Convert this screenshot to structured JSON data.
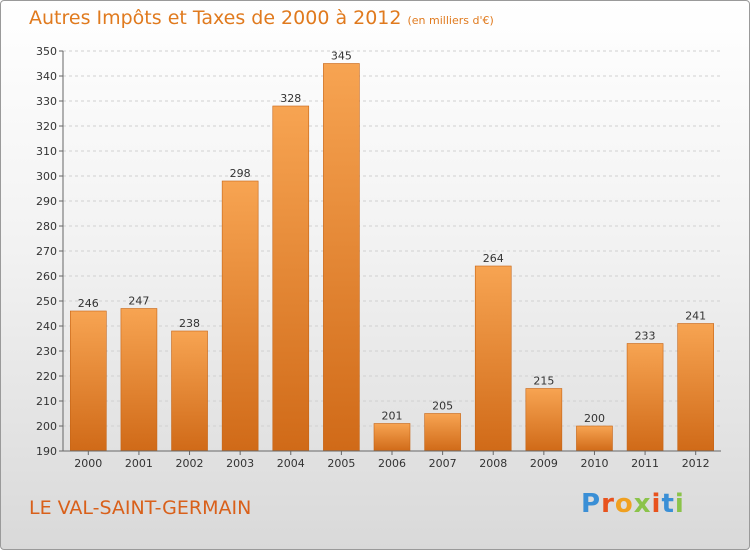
{
  "chart_data": {
    "type": "bar",
    "title": "Autres Impôts et Taxes de 2000 à 2012",
    "subtitle": "(en milliers d'€)",
    "categories": [
      "2000",
      "2001",
      "2002",
      "2003",
      "2004",
      "2005",
      "2006",
      "2007",
      "2008",
      "2009",
      "2010",
      "2011",
      "2012"
    ],
    "values": [
      246,
      247,
      238,
      298,
      328,
      345,
      201,
      205,
      264,
      215,
      200,
      233,
      241
    ],
    "ylim": [
      190,
      350
    ],
    "ytick_step": 10,
    "grid": true,
    "bar_color": "#f0923c",
    "bar_color_dark": "#d4701e"
  },
  "place_name": "LE VAL-SAINT-GERMAIN",
  "logo": {
    "letters": [
      "P",
      "r",
      "o",
      "x",
      "i",
      "t",
      "i"
    ],
    "colors": [
      "#3a8fd6",
      "#e8521d",
      "#f0a020",
      "#8bc34a",
      "#e8521d",
      "#3a8fd6",
      "#8bc34a"
    ]
  }
}
